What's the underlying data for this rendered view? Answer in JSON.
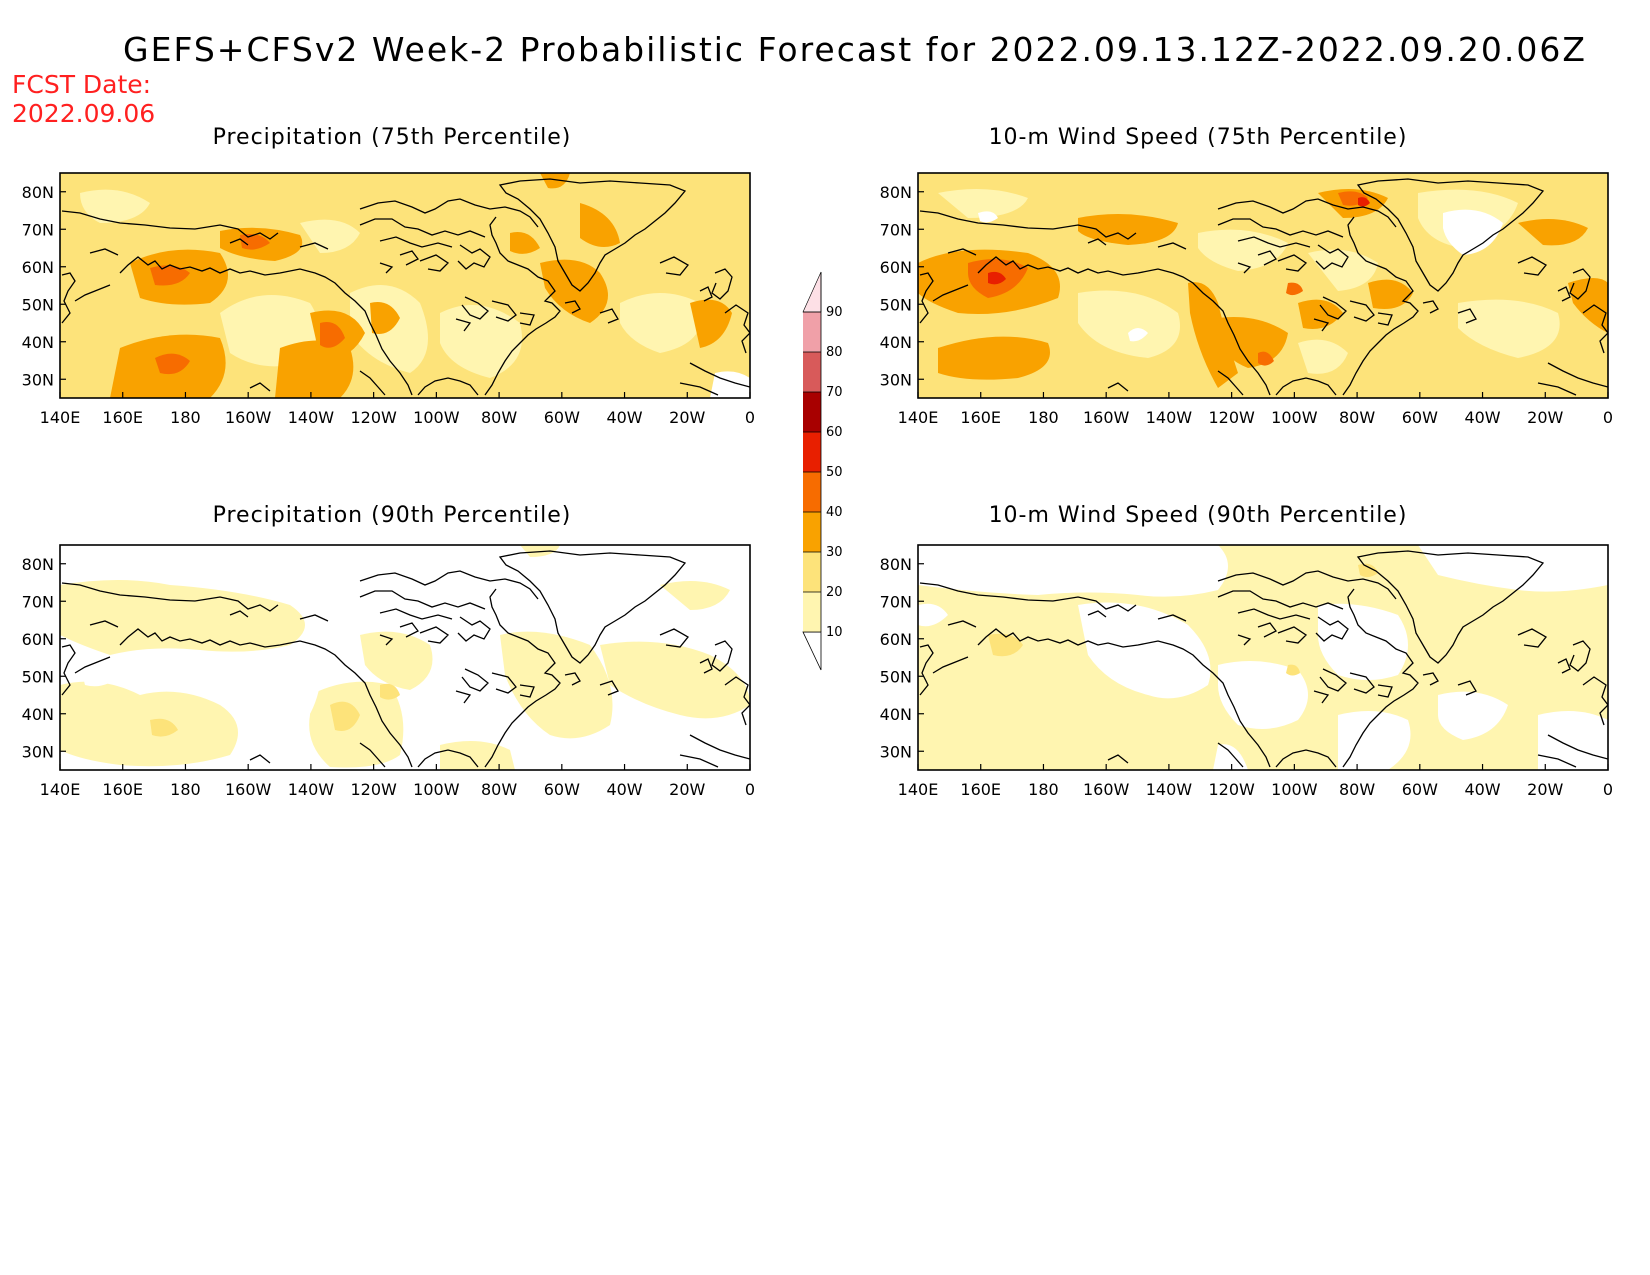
{
  "title": "GEFS+CFSv2 Week-2 Probabilistic Forecast for 2022.09.13.12Z-2022.09.20.06Z",
  "fcst_date_label": "FCST Date:",
  "fcst_date_value": "2022.09.06",
  "lon_ticks": [
    "140E",
    "160E",
    "180",
    "160W",
    "140W",
    "120W",
    "100W",
    "80W",
    "60W",
    "40W",
    "20W",
    "0"
  ],
  "lat_ticks": [
    "80N",
    "70N",
    "60N",
    "50N",
    "40N",
    "30N"
  ],
  "panels": [
    {
      "id": "precip75",
      "title": "Precipitation (75th Percentile)"
    },
    {
      "id": "wind75",
      "title": "10-m Wind Speed (75th Percentile)"
    },
    {
      "id": "precip90",
      "title": "Precipitation (90th Percentile)"
    },
    {
      "id": "wind90",
      "title": "10-m Wind Speed (90th Percentile)"
    }
  ],
  "colorbar": {
    "levels": [
      "10",
      "20",
      "30",
      "40",
      "50",
      "60",
      "70",
      "80",
      "90"
    ],
    "colors": [
      "#fff5b0",
      "#fde37a",
      "#f9a200",
      "#f76c00",
      "#e81f00",
      "#a80000",
      "#d85a5a",
      "#f0a0a8",
      "#fde0e6"
    ]
  },
  "map_colors": {
    "background": "#ffffff",
    "level_10_20": "#fff5b0",
    "level_20_30": "#fde37a",
    "level_30_40": "#f9a200",
    "level_40_50": "#f76c00",
    "level_50_60": "#e81f00",
    "coastline": "#000000"
  }
}
